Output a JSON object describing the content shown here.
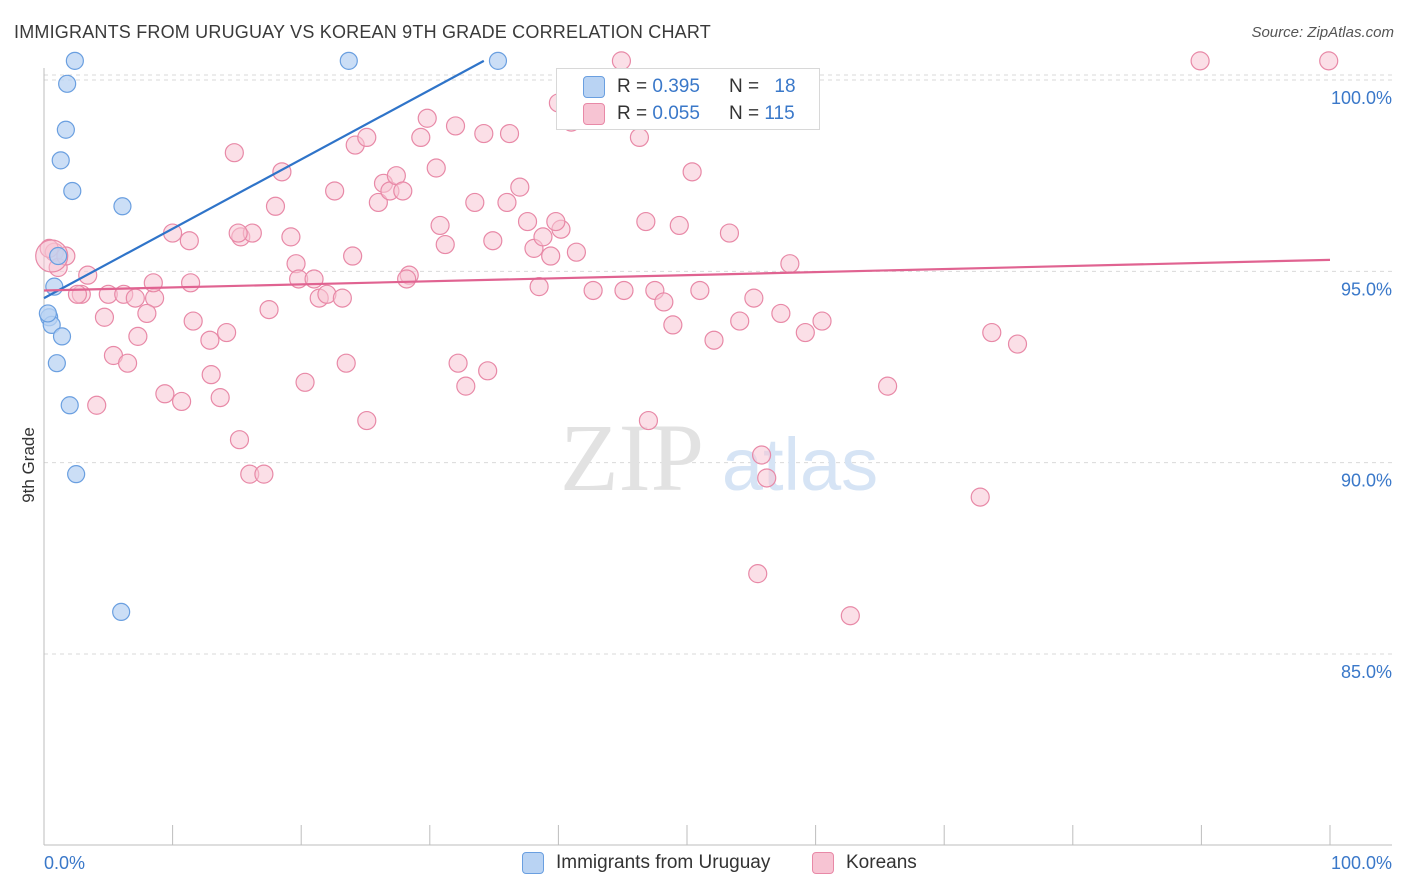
{
  "title": "IMMIGRANTS FROM URUGUAY VS KOREAN 9TH GRADE CORRELATION CHART",
  "source": "Source: ZipAtlas.com",
  "watermark": {
    "zip": "ZIP",
    "atlas": "atlas"
  },
  "legend": {
    "series1": {
      "r_label": "R = ",
      "r_value": "0.395",
      "n_label": "N = ",
      "n_value": "18"
    },
    "series2": {
      "r_label": "R = ",
      "r_value": "0.055",
      "n_label": "N = ",
      "n_value": "115"
    }
  },
  "bottom_legend": {
    "series1": "Immigrants from Uruguay",
    "series2": "Koreans"
  },
  "colors": {
    "blue_fill": "#b9d3f3",
    "blue_stroke": "#6a9fe0",
    "blue_line": "#2f74c9",
    "pink_fill": "#f7c4d3",
    "pink_stroke": "#e889a7",
    "pink_line": "#e06391",
    "tick_text": "#3a78c9",
    "grid": "#d9d9d9"
  },
  "chart_data": {
    "type": "scatter",
    "title": "IMMIGRANTS FROM URUGUAY VS KOREAN 9TH GRADE CORRELATION CHART",
    "xlabel": "",
    "ylabel": "9th Grade",
    "xlim": [
      0,
      100
    ],
    "ylim": [
      80,
      100.8
    ],
    "x_tick_labels": [
      "0.0%",
      "100.0%"
    ],
    "y_ticks": [
      85,
      90,
      95,
      100
    ],
    "y_tick_labels": [
      "85.0%",
      "90.0%",
      "95.0%",
      "100.0%"
    ],
    "series": [
      {
        "name": "Immigrants from Uruguay",
        "R": 0.395,
        "N": 18,
        "trend": {
          "x": [
            0,
            34.2
          ],
          "y": [
            94.3,
            100.5
          ]
        },
        "points": [
          [
            2.4,
            100.5
          ],
          [
            1.8,
            99.9
          ],
          [
            23.7,
            100.5
          ],
          [
            35.3,
            100.5
          ],
          [
            1.7,
            98.7
          ],
          [
            1.3,
            97.9
          ],
          [
            2.2,
            97.1
          ],
          [
            6.1,
            96.7
          ],
          [
            1.1,
            95.4
          ],
          [
            0.8,
            94.6
          ],
          [
            0.4,
            93.8
          ],
          [
            0.6,
            93.6
          ],
          [
            1.4,
            93.3
          ],
          [
            1.0,
            92.6
          ],
          [
            2.0,
            91.5
          ],
          [
            2.5,
            89.7
          ],
          [
            6.0,
            86.1
          ],
          [
            0.3,
            93.9
          ]
        ]
      },
      {
        "name": "Koreans",
        "R": 0.055,
        "N": 115,
        "trend": {
          "x": [
            0,
            100
          ],
          "y": [
            94.5,
            95.3
          ]
        },
        "points": [
          [
            0.8,
            95.5
          ],
          [
            1.1,
            95.1
          ],
          [
            1.7,
            95.4
          ],
          [
            3.4,
            94.9
          ],
          [
            2.9,
            94.4
          ],
          [
            4.7,
            93.8
          ],
          [
            5.0,
            94.4
          ],
          [
            6.2,
            94.4
          ],
          [
            7.1,
            94.3
          ],
          [
            8.6,
            94.3
          ],
          [
            5.4,
            92.8
          ],
          [
            6.5,
            92.6
          ],
          [
            7.3,
            93.3
          ],
          [
            8.0,
            93.9
          ],
          [
            8.5,
            94.7
          ],
          [
            9.4,
            91.8
          ],
          [
            10.7,
            91.6
          ],
          [
            11.3,
            95.8
          ],
          [
            11.4,
            94.7
          ],
          [
            11.6,
            93.7
          ],
          [
            13.0,
            92.3
          ],
          [
            12.9,
            93.2
          ],
          [
            13.7,
            91.7
          ],
          [
            14.2,
            93.4
          ],
          [
            14.8,
            98.1
          ],
          [
            15.3,
            95.9
          ],
          [
            16.2,
            96.0
          ],
          [
            17.5,
            94.0
          ],
          [
            18.0,
            96.7
          ],
          [
            18.5,
            97.6
          ],
          [
            19.2,
            95.9
          ],
          [
            19.6,
            95.2
          ],
          [
            19.8,
            94.8
          ],
          [
            20.3,
            92.1
          ],
          [
            21.0,
            94.8
          ],
          [
            21.4,
            94.3
          ],
          [
            22.0,
            94.4
          ],
          [
            22.6,
            97.1
          ],
          [
            23.2,
            94.3
          ],
          [
            23.5,
            92.6
          ],
          [
            24.0,
            95.4
          ],
          [
            24.2,
            98.3
          ],
          [
            25.1,
            98.5
          ],
          [
            26.0,
            96.8
          ],
          [
            26.4,
            97.3
          ],
          [
            26.9,
            97.1
          ],
          [
            27.4,
            97.5
          ],
          [
            27.9,
            97.1
          ],
          [
            28.4,
            94.9
          ],
          [
            29.3,
            98.5
          ],
          [
            29.8,
            99.0
          ],
          [
            30.5,
            97.7
          ],
          [
            30.8,
            96.2
          ],
          [
            31.2,
            95.7
          ],
          [
            32.0,
            98.8
          ],
          [
            32.2,
            92.6
          ],
          [
            32.8,
            92.0
          ],
          [
            33.5,
            96.8
          ],
          [
            34.2,
            98.6
          ],
          [
            34.9,
            95.8
          ],
          [
            34.5,
            92.4
          ],
          [
            36.0,
            96.8
          ],
          [
            36.2,
            98.6
          ],
          [
            37.0,
            97.2
          ],
          [
            37.6,
            96.3
          ],
          [
            38.1,
            95.6
          ],
          [
            38.5,
            94.6
          ],
          [
            38.8,
            95.9
          ],
          [
            39.4,
            95.4
          ],
          [
            40.2,
            96.1
          ],
          [
            41.0,
            98.9
          ],
          [
            41.4,
            95.5
          ],
          [
            42.7,
            94.5
          ],
          [
            44.1,
            99.2
          ],
          [
            45.1,
            94.5
          ],
          [
            46.3,
            98.5
          ],
          [
            46.8,
            96.3
          ],
          [
            47.5,
            94.5
          ],
          [
            48.2,
            94.2
          ],
          [
            48.9,
            93.6
          ],
          [
            49.4,
            96.2
          ],
          [
            50.4,
            97.6
          ],
          [
            51.0,
            94.5
          ],
          [
            52.1,
            93.2
          ],
          [
            53.3,
            96.0
          ],
          [
            54.1,
            93.7
          ],
          [
            55.2,
            94.3
          ],
          [
            55.8,
            90.2
          ],
          [
            56.2,
            89.6
          ],
          [
            55.5,
            87.1
          ],
          [
            57.3,
            93.9
          ],
          [
            58.0,
            95.2
          ],
          [
            59.2,
            93.4
          ],
          [
            60.5,
            93.7
          ],
          [
            62.7,
            86.0
          ],
          [
            65.6,
            92.0
          ],
          [
            72.8,
            89.1
          ],
          [
            73.7,
            93.4
          ],
          [
            75.7,
            93.1
          ],
          [
            89.9,
            100.5
          ],
          [
            99.9,
            100.5
          ],
          [
            0.4,
            95.6
          ],
          [
            2.6,
            94.4
          ],
          [
            4.1,
            91.5
          ],
          [
            10.0,
            96.0
          ],
          [
            15.1,
            96.0
          ],
          [
            16.0,
            89.7
          ],
          [
            17.1,
            89.7
          ],
          [
            15.2,
            90.6
          ],
          [
            25.1,
            91.1
          ],
          [
            47.0,
            91.1
          ],
          [
            40.0,
            99.4
          ],
          [
            39.8,
            96.3
          ],
          [
            44.9,
            100.5
          ],
          [
            28.2,
            94.8
          ]
        ]
      }
    ]
  }
}
